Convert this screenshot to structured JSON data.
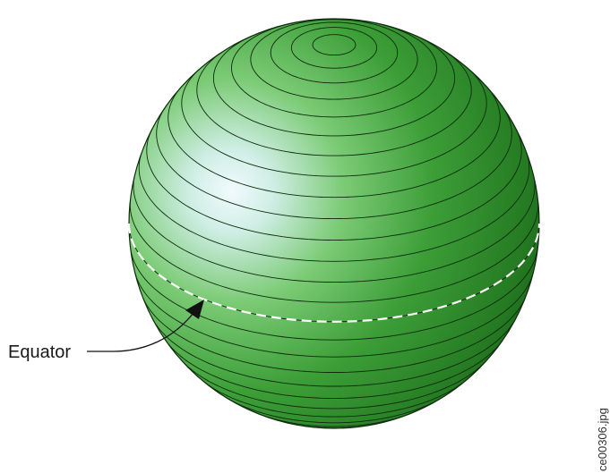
{
  "diagram": {
    "equator_label": "Equator",
    "file_label": "ce00306.jpg"
  },
  "colors": {
    "sphere_dark": "#1f6e1c",
    "sphere_mid": "#3fa83a",
    "sphere_highlight": "#eaf6fb",
    "latitude_lines": "#0d2a0c",
    "equator_dash": "#ffffff"
  }
}
